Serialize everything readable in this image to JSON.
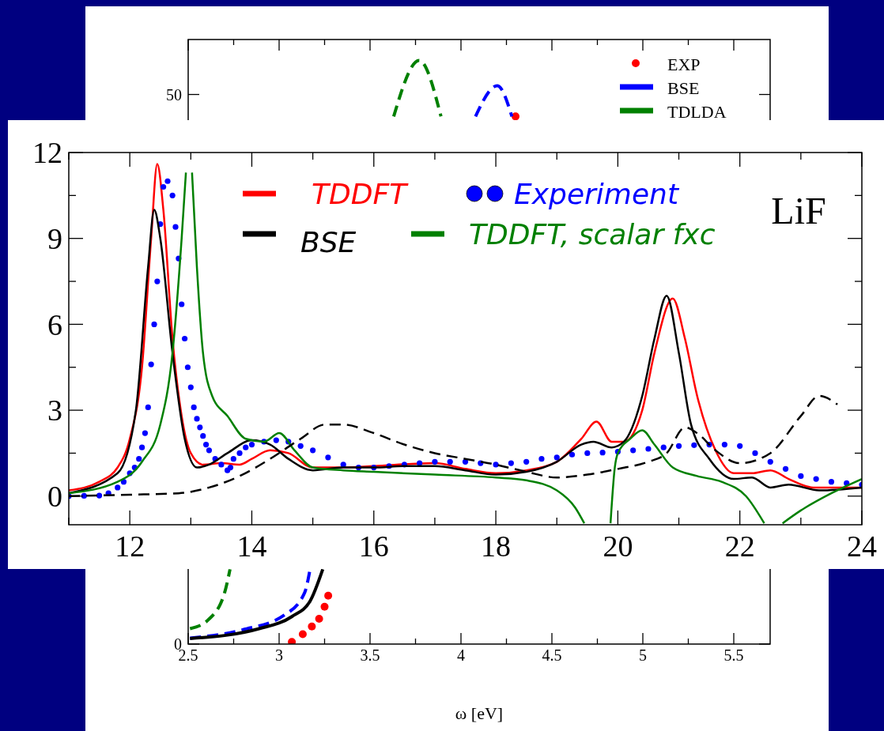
{
  "chart_data": [
    {
      "type": "line",
      "xlabel": "ω [eV]",
      "xlim": [
        2.5,
        5.7
      ],
      "ylim": [
        0,
        55
      ],
      "xticks": [
        2.5,
        {
          "value": 2.75,
          "label": null
        },
        3,
        {
          "value": 3.25,
          "label": null
        },
        3.5,
        {
          "value": 3.75,
          "label": null
        },
        4,
        {
          "value": 4.25,
          "label": null
        },
        4.5,
        {
          "value": 4.75,
          "label": null
        },
        5,
        {
          "value": 5.25,
          "label": null
        },
        5.5
      ],
      "yticks": [
        0,
        50
      ],
      "legend": "top right",
      "series": [
        {
          "name": "EXP",
          "type": "scatter",
          "marker": "circle",
          "color": "#ff0000",
          "x": [
            3.07,
            3.13,
            3.18,
            3.22,
            3.25,
            3.27,
            4.3
          ],
          "values": [
            0.2,
            0.9,
            1.6,
            2.3,
            3.4,
            4.4,
            48
          ]
        },
        {
          "name": "BSE",
          "color": "#0000ff",
          "line_style": "dashed",
          "x": [
            2.51,
            2.8,
            3.03,
            3.14,
            3.17,
            3.6,
            4.08,
            4.2,
            4.28
          ],
          "values": [
            0.54,
            1.3,
            2.65,
            4.66,
            6.8,
            null,
            48,
            50.8,
            48
          ]
        },
        {
          "name": "TDLDA",
          "color": "#008000",
          "line_style": "dashed",
          "x": [
            2.51,
            2.61,
            2.7,
            2.73,
            3.2,
            3.63,
            3.77,
            3.89
          ],
          "values": [
            1.4,
            2.2,
            4.66,
            6.8,
            null,
            48,
            53.1,
            48
          ]
        },
        {
          "color": "#000000",
          "line_style": "solid",
          "x": [
            2.51,
            2.89,
            3.07,
            3.17,
            3.24
          ],
          "values": [
            0.5,
            1.4,
            2.5,
            3.9,
            6.8
          ]
        }
      ]
    },
    {
      "type": "line",
      "xlim": [
        11,
        24
      ],
      "ylim": [
        -1,
        12
      ],
      "xticks": [
        {
          "value": 11,
          "label": null
        },
        12,
        {
          "value": 13,
          "label": null
        },
        14,
        {
          "value": 15,
          "label": null
        },
        16,
        {
          "value": 17,
          "label": null
        },
        18,
        {
          "value": 19,
          "label": null
        },
        20,
        {
          "value": 21,
          "label": null
        },
        22,
        {
          "value": 23,
          "label": null
        },
        24
      ],
      "yticks": [
        0,
        {
          "value": 1.5,
          "label": null
        },
        3,
        {
          "value": 4.5,
          "label": null
        },
        6,
        {
          "value": 7.5,
          "label": null
        },
        9,
        {
          "value": 10.5,
          "label": null
        },
        12
      ],
      "legend": "top",
      "annotations": [
        "LiF"
      ],
      "series": [
        {
          "name": "TDDFT",
          "color": "#ff0000",
          "line_style": "solid",
          "x": [
            11,
            11.5,
            11.8,
            12.0,
            12.2,
            12.35,
            12.45,
            12.55,
            12.7,
            12.85,
            13.0,
            13.2,
            13.5,
            13.8,
            14.0,
            14.3,
            14.6,
            15.0,
            15.5,
            16,
            17,
            17.5,
            18,
            18.5,
            19,
            19.4,
            19.65,
            19.9,
            20.1,
            20.4,
            20.6,
            20.9,
            21.1,
            21.3,
            21.6,
            21.9,
            22.2,
            22.5,
            22.8,
            23.2,
            24
          ],
          "values": [
            0.2,
            0.5,
            1,
            2,
            4.5,
            9,
            11.6,
            10,
            5.5,
            2.8,
            1.5,
            1.1,
            1.15,
            1.1,
            1.3,
            1.6,
            1.5,
            1.0,
            1.0,
            1.05,
            1.15,
            0.95,
            0.8,
            0.9,
            1.2,
            2.0,
            2.6,
            1.9,
            1.9,
            3.0,
            5.0,
            6.9,
            5.5,
            3.5,
            1.6,
            0.8,
            0.8,
            0.9,
            0.6,
            0.3,
            0.3
          ]
        },
        {
          "name": "Experiment",
          "type": "scatter",
          "marker": "circle",
          "color": "#0000ff",
          "x": [
            11,
            11.25,
            11.5,
            11.65,
            11.8,
            11.9,
            12.0,
            12.08,
            12.15,
            12.2,
            12.25,
            12.3,
            12.35,
            12.4,
            12.45,
            12.5,
            12.55,
            12.62,
            12.7,
            12.75,
            12.8,
            12.85,
            12.9,
            12.95,
            13.0,
            13.05,
            13.1,
            13.15,
            13.2,
            13.25,
            13.3,
            13.4,
            13.5,
            13.6,
            13.65,
            13.7,
            13.8,
            13.9,
            14.0,
            14.2,
            14.4,
            14.6,
            14.8,
            15.0,
            15.25,
            15.5,
            15.75,
            16,
            16.25,
            16.5,
            16.75,
            17,
            17.25,
            17.5,
            17.75,
            18,
            18.25,
            18.5,
            18.75,
            19,
            19.25,
            19.5,
            19.75,
            20,
            20.25,
            20.5,
            20.75,
            21,
            21.25,
            21.5,
            21.75,
            22,
            22.25,
            22.5,
            22.75,
            23,
            23.25,
            23.5,
            23.75,
            24
          ],
          "values": [
            0,
            0.01,
            0.02,
            0.1,
            0.3,
            0.5,
            0.8,
            1.0,
            1.3,
            1.7,
            2.2,
            3.1,
            4.6,
            6,
            7.5,
            9.5,
            10.8,
            11,
            10.5,
            9.4,
            8.3,
            6.7,
            5.5,
            4.5,
            3.8,
            3.1,
            2.7,
            2.4,
            2.1,
            1.8,
            1.6,
            1.3,
            1.1,
            0.9,
            1.0,
            1.3,
            1.5,
            1.7,
            1.8,
            1.9,
            1.95,
            1.9,
            1.75,
            1.6,
            1.35,
            1.1,
            1.0,
            1.0,
            1.05,
            1.1,
            1.15,
            1.2,
            1.2,
            1.2,
            1.15,
            1.1,
            1.15,
            1.2,
            1.3,
            1.35,
            1.45,
            1.5,
            1.52,
            1.55,
            1.6,
            1.65,
            1.7,
            1.75,
            1.78,
            1.8,
            1.8,
            1.75,
            1.5,
            1.2,
            0.95,
            0.7,
            0.6,
            0.5,
            0.45,
            0.4
          ]
        },
        {
          "name": "BSE",
          "color": "#000000",
          "line_style": "solid",
          "x": [
            11,
            11.8,
            12.1,
            12.3,
            12.4,
            12.5,
            12.7,
            12.9,
            13.1,
            13.3,
            13.6,
            14.0,
            14.3,
            14.6,
            15,
            15.5,
            16,
            16.5,
            17,
            17.5,
            18,
            18.5,
            19,
            19.4,
            19.6,
            19.9,
            20.1,
            20.4,
            20.6,
            20.8,
            21.0,
            21.2,
            21.5,
            21.9,
            22.2,
            22.5,
            22.8,
            23.3,
            24
          ],
          "values": [
            0.1,
            0.8,
            3,
            8,
            10,
            9,
            5,
            2,
            1.0,
            1.1,
            1.5,
            1.95,
            1.8,
            1.3,
            0.9,
            1.0,
            1.0,
            1.05,
            1.05,
            0.9,
            0.75,
            0.85,
            1.2,
            1.8,
            1.9,
            1.7,
            1.9,
            3.5,
            5.5,
            7.0,
            5.0,
            2.5,
            1.3,
            0.6,
            0.65,
            0.3,
            0.4,
            0.2,
            0.3
          ]
        },
        {
          "name": "TDDFT, scalar fxc",
          "color": "#008000",
          "line_style": "solid",
          "x": [
            11,
            11.8,
            12.2,
            12.5,
            12.7,
            12.85,
            12.92,
            12.97,
            13.02,
            13.1,
            13.2,
            13.35,
            13.6,
            13.9,
            14.2,
            14.45,
            14.7,
            15,
            15.5,
            16,
            17,
            18,
            18.5,
            19.0,
            19.3,
            19.45,
            19.7,
            19.88,
            19.95,
            20.0,
            20.2,
            20.4,
            20.6,
            20.9,
            21.3,
            21.7,
            22.1,
            22.4,
            22.55,
            22.7,
            23.0,
            23.5,
            24
          ],
          "values": [
            0.1,
            0.5,
            1.2,
            2.5,
            5,
            9,
            11.3,
            null,
            11.3,
            8,
            5,
            3.5,
            2.8,
            2.0,
            1.9,
            2.2,
            1.6,
            1.0,
            0.9,
            0.85,
            0.75,
            0.65,
            0.55,
            0.2,
            -0.4,
            -0.95,
            null,
            -0.95,
            1.0,
            1.5,
            2.0,
            2.3,
            1.8,
            1.0,
            0.7,
            0.5,
            0,
            -0.95,
            null,
            -0.95,
            -0.5,
            0.1,
            0.6
          ]
        },
        {
          "color": "#000000",
          "line_style": "dashed",
          "x": [
            11,
            12,
            12.8,
            13.3,
            13.8,
            14.3,
            14.8,
            15.2,
            15.5,
            16,
            16.5,
            17,
            17.5,
            18,
            18.5,
            19,
            19.5,
            20,
            20.5,
            20.8,
            21.1,
            21.3,
            21.6,
            22,
            22.5,
            23,
            23.3,
            23.6
          ],
          "values": [
            0,
            0.05,
            0.1,
            0.3,
            0.7,
            1.3,
            2.0,
            2.5,
            2.5,
            2.2,
            1.8,
            1.5,
            1.3,
            1.1,
            0.85,
            0.65,
            0.75,
            0.95,
            1.2,
            1.5,
            2.4,
            2.2,
            1.6,
            1.15,
            1.5,
            2.8,
            3.5,
            3.2
          ]
        }
      ]
    }
  ]
}
